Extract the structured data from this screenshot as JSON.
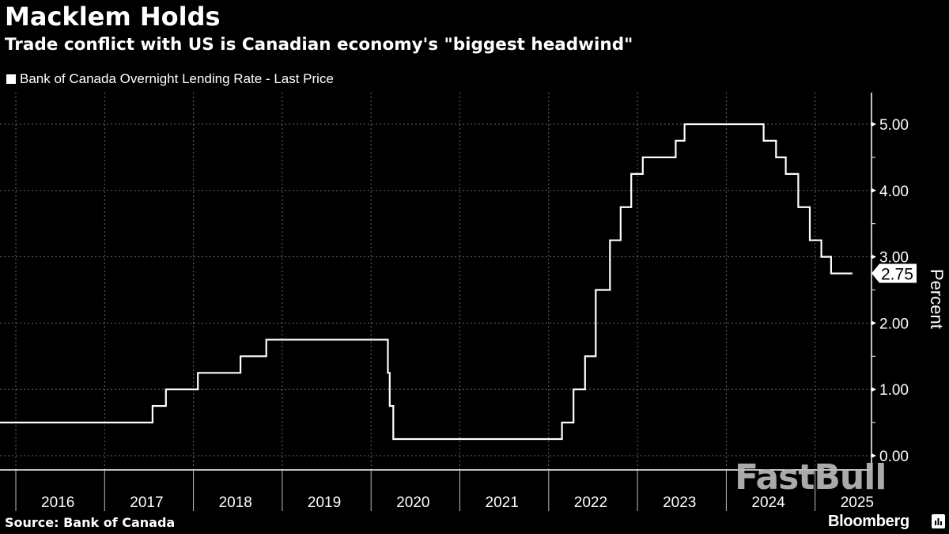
{
  "header": {
    "title": "Macklem Holds",
    "subtitle": "Trade conflict with US is Canadian economy's \"biggest headwind\""
  },
  "footer": {
    "source": "Source:  Bank of Canada",
    "brand": "Bloomberg",
    "watermark": "FastBull"
  },
  "colors": {
    "background": "#000000",
    "line": "#ffffff",
    "grid": "#8a8a8a",
    "watermark": "#b9b9b9"
  },
  "chart_data": {
    "type": "line",
    "step": true,
    "title": "Macklem Holds",
    "subtitle": "Trade conflict with US is Canadian economy's \"biggest headwind\"",
    "legend": [
      "Bank of Canada Overnight Lending Rate - Last Price"
    ],
    "legend_position": "top-left",
    "xlabel": "",
    "ylabel": "Percent",
    "xlim": [
      2015.82,
      2025.62
    ],
    "ylim": [
      -0.22,
      5.45
    ],
    "grid": true,
    "x_tick_labels": [
      "2016",
      "2017",
      "2018",
      "2019",
      "2020",
      "2021",
      "2022",
      "2023",
      "2024",
      "2025"
    ],
    "x_tick_starts": [
      2016,
      2017,
      2018,
      2019,
      2020,
      2021,
      2022,
      2023,
      2024,
      2025
    ],
    "y_ticks": [
      0,
      1,
      2,
      3,
      4,
      5
    ],
    "y_tick_labels": [
      "0.00",
      "1.00",
      "2.00",
      "3.00",
      "4.00",
      "5.00"
    ],
    "last_value_label": "2.75",
    "series": [
      {
        "name": "Bank of Canada Overnight Lending Rate - Last Price",
        "x": [
          2015.82,
          2017.54,
          2017.69,
          2018.05,
          2018.53,
          2018.82,
          2020.19,
          2020.21,
          2020.25,
          2022.15,
          2022.28,
          2022.41,
          2022.53,
          2022.69,
          2022.81,
          2022.93,
          2023.06,
          2023.43,
          2023.53,
          2024.42,
          2024.56,
          2024.67,
          2024.81,
          2024.94,
          2025.07,
          2025.18,
          2025.42
        ],
        "values": [
          0.5,
          0.75,
          1.0,
          1.25,
          1.5,
          1.75,
          1.25,
          0.75,
          0.25,
          0.5,
          1.0,
          1.5,
          2.5,
          3.25,
          3.75,
          4.25,
          4.5,
          4.75,
          5.0,
          4.75,
          4.5,
          4.25,
          3.75,
          3.25,
          3.0,
          2.75,
          2.75
        ]
      }
    ]
  }
}
